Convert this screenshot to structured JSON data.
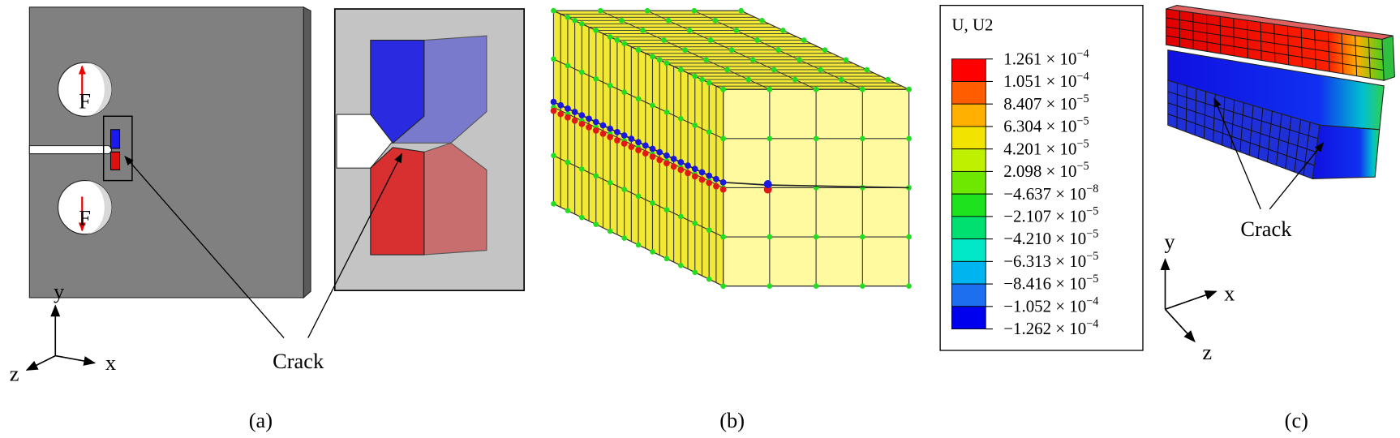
{
  "panel_a": {
    "force_labels": [
      "F",
      "F"
    ],
    "crack_label": "Crack",
    "axes": {
      "y": "y",
      "x": "x",
      "z": "z"
    },
    "caption": "(a)"
  },
  "panel_b": {
    "caption": "(b)"
  },
  "legend": {
    "title": "U, U2",
    "entries": [
      {
        "mantissa": "1.261 × 10",
        "exponent": "−4"
      },
      {
        "mantissa": "1.051 × 10",
        "exponent": "−4"
      },
      {
        "mantissa": "8.407 × 10",
        "exponent": "−5"
      },
      {
        "mantissa": "6.304 × 10",
        "exponent": "−5"
      },
      {
        "mantissa": "4.201 × 10",
        "exponent": "−5"
      },
      {
        "mantissa": "2.098 × 10",
        "exponent": "−5"
      },
      {
        "mantissa": "−4.637 × 10",
        "exponent": "−8"
      },
      {
        "mantissa": "−2.107 × 10",
        "exponent": "−5"
      },
      {
        "mantissa": "−4.210 × 10",
        "exponent": "−5"
      },
      {
        "mantissa": "−6.313 × 10",
        "exponent": "−5"
      },
      {
        "mantissa": "−8.416 × 10",
        "exponent": "−5"
      },
      {
        "mantissa": "−1.052 × 10",
        "exponent": "−4"
      },
      {
        "mantissa": "−1.262 × 10",
        "exponent": "−4"
      }
    ],
    "colors": [
      "#ff0000",
      "#ff5d00",
      "#ffb000",
      "#f2e400",
      "#bff000",
      "#6ee800",
      "#1ee21e",
      "#00e070",
      "#00e8c8",
      "#00b4f0",
      "#1e6ef0",
      "#0000ee"
    ]
  },
  "panel_c": {
    "crack_label": "Crack",
    "axes": {
      "y": "y",
      "x": "x",
      "z": "z"
    },
    "caption": "(c)"
  }
}
